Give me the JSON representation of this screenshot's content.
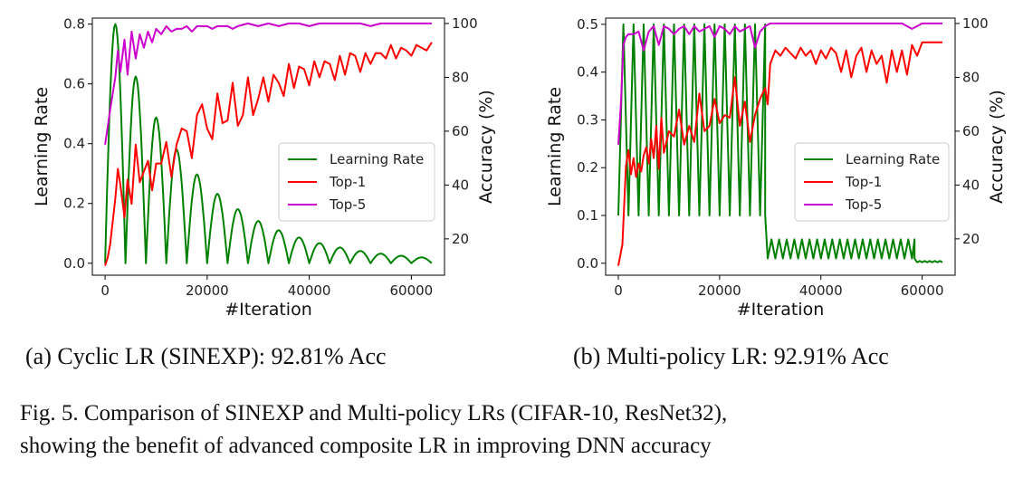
{
  "chart_data": [
    {
      "type": "line",
      "id": "a",
      "xlabel": "#Iteration",
      "ylabel": "Learning Rate",
      "y2label": "Accuracy (%)",
      "xlim": [
        -2500,
        66500
      ],
      "ylim": [
        -0.04,
        0.82
      ],
      "y2lim": [
        6.5,
        102
      ],
      "xticks": [
        0,
        20000,
        40000,
        60000
      ],
      "yticks": [
        0.0,
        0.2,
        0.4,
        0.6,
        0.8
      ],
      "yticklabels": [
        "0.0",
        "0.2",
        "0.4",
        "0.6",
        "0.8"
      ],
      "y2ticks": [
        20,
        40,
        60,
        80,
        100
      ],
      "legend": {
        "position": "center-right",
        "entries": [
          "Learning Rate",
          "Top-1",
          "Top-5"
        ]
      },
      "colors": {
        "Learning Rate": "#008000",
        "Top-1": "#ff0000",
        "Top-5": "#cc00cc"
      },
      "series": [
        {
          "name": "Learning Rate",
          "axis": "left",
          "kind": "sinexp",
          "period": 4000,
          "peak0": 0.8,
          "decay": 0.94,
          "x_end": 64000
        },
        {
          "name": "Top-1",
          "axis": "right",
          "x": [
            0,
            500,
            1000,
            2000,
            2500,
            3000,
            3800,
            4400,
            5200,
            6000,
            6800,
            7600,
            8400,
            9200,
            10000,
            11000,
            12000,
            13000,
            14000,
            15000,
            16000,
            17000,
            18000,
            19000,
            20000,
            21000,
            22000,
            23000,
            24000,
            25000,
            26000,
            27000,
            28000,
            29000,
            30000,
            31000,
            32000,
            33000,
            34000,
            35000,
            36000,
            37000,
            38000,
            39000,
            40000,
            41000,
            42000,
            43000,
            44000,
            45000,
            46000,
            47000,
            48000,
            49000,
            50000,
            51000,
            52000,
            53000,
            54000,
            55000,
            56000,
            57000,
            58000,
            59000,
            60000,
            61000,
            62000,
            63000,
            64000
          ],
          "values": [
            10,
            13,
            18,
            35,
            46,
            40,
            28,
            42,
            33,
            55,
            41,
            45,
            49,
            38,
            48,
            48,
            56,
            43,
            55,
            61,
            60,
            50,
            66,
            70,
            61,
            57,
            74,
            63,
            64,
            78,
            62,
            66,
            80,
            66,
            72,
            80,
            71,
            81,
            78,
            73,
            85,
            76,
            84,
            83,
            77,
            86,
            80,
            86,
            85,
            79,
            88,
            81,
            89,
            88,
            82,
            89,
            85,
            89,
            89,
            87,
            92,
            87,
            91,
            90,
            88,
            92,
            91,
            90,
            93
          ]
        },
        {
          "name": "Top-5",
          "axis": "right",
          "x": [
            0,
            1000,
            2000,
            2500,
            3000,
            3800,
            4400,
            5200,
            6000,
            6800,
            7600,
            8400,
            9200,
            10000,
            11000,
            12000,
            13000,
            14000,
            15000,
            16000,
            17000,
            18000,
            19000,
            20000,
            21000,
            22000,
            23000,
            24000,
            25000,
            26000,
            28000,
            30000,
            32000,
            34000,
            36000,
            38000,
            40000,
            42000,
            44000,
            46000,
            48000,
            50000,
            52000,
            54000,
            56000,
            58000,
            60000,
            62000,
            64000
          ],
          "values": [
            55,
            68,
            80,
            90,
            82,
            94,
            81,
            97,
            87,
            96,
            91,
            97,
            93,
            98,
            96,
            99,
            97,
            98,
            98,
            99,
            97,
            99,
            99,
            99,
            98,
            99,
            99,
            99,
            98,
            99,
            100,
            99,
            100,
            99,
            100,
            100,
            99,
            100,
            100,
            100,
            100,
            100,
            99,
            100,
            100,
            100,
            100,
            100,
            100
          ]
        }
      ]
    },
    {
      "type": "line",
      "id": "b",
      "xlabel": "#Iteration",
      "ylabel": "Learning Rate",
      "y2label": "Accuracy (%)",
      "xlim": [
        -2500,
        66500
      ],
      "ylim": [
        -0.025,
        0.513
      ],
      "y2lim": [
        6.5,
        102
      ],
      "xticks": [
        0,
        20000,
        40000,
        60000
      ],
      "yticks": [
        0.0,
        0.1,
        0.2,
        0.3,
        0.4,
        0.5
      ],
      "yticklabels": [
        "0.0",
        "0.1",
        "0.2",
        "0.3",
        "0.4",
        "0.5"
      ],
      "y2ticks": [
        20,
        40,
        60,
        80,
        100
      ],
      "legend": {
        "position": "center-right",
        "entries": [
          "Learning Rate",
          "Top-1",
          "Top-5"
        ]
      },
      "colors": {
        "Learning Rate": "#008000",
        "Top-1": "#ff0000",
        "Top-5": "#cc00cc"
      },
      "series": [
        {
          "name": "Learning Rate",
          "axis": "left",
          "kind": "triangular",
          "phase1": {
            "x_start": 0,
            "x_end": 29000,
            "period": 2000,
            "low": 0.1,
            "high": 0.5
          },
          "phase2": {
            "x_start": 29500,
            "x_end": 58500,
            "period": 1500,
            "low": 0.01,
            "high": 0.05
          },
          "phase3": {
            "x_start": 59000,
            "x_end": 64000,
            "period": 1000,
            "low": 0.002,
            "high": 0.005
          }
        },
        {
          "name": "Top-1",
          "axis": "right",
          "x": [
            0,
            800,
            1500,
            2000,
            2500,
            3000,
            3500,
            4000,
            4500,
            5000,
            5500,
            6000,
            6500,
            7000,
            7500,
            8000,
            8500,
            9000,
            10000,
            11000,
            12000,
            13000,
            14000,
            15000,
            16000,
            17000,
            18000,
            19000,
            20000,
            21000,
            22000,
            23000,
            24000,
            25000,
            26000,
            27000,
            28000,
            29000,
            29500,
            30000,
            31000,
            32000,
            33000,
            34000,
            35000,
            36000,
            37000,
            38000,
            39000,
            40000,
            41000,
            42000,
            43000,
            44000,
            45000,
            46000,
            47000,
            48000,
            49000,
            50000,
            51000,
            52000,
            53000,
            54000,
            55000,
            56000,
            57000,
            58000,
            59000,
            60000,
            61000,
            62000,
            63000,
            64000
          ],
          "values": [
            10,
            18,
            47,
            53,
            44,
            50,
            43,
            48,
            45,
            51,
            54,
            48,
            57,
            50,
            62,
            46,
            65,
            52,
            60,
            58,
            68,
            55,
            62,
            56,
            74,
            60,
            62,
            72,
            63,
            66,
            65,
            80,
            62,
            71,
            56,
            66,
            72,
            76,
            70,
            85,
            90,
            88,
            91,
            89,
            87,
            91,
            88,
            90,
            85,
            90,
            87,
            91,
            89,
            82,
            90,
            80,
            88,
            91,
            82,
            90,
            85,
            88,
            78,
            90,
            82,
            90,
            81,
            92,
            88,
            93,
            93,
            93,
            93,
            93
          ]
        },
        {
          "name": "Top-5",
          "axis": "right",
          "x": [
            0,
            500,
            1000,
            1500,
            2000,
            3000,
            4000,
            5000,
            6000,
            7000,
            8000,
            9000,
            10000,
            11000,
            12000,
            13000,
            14000,
            15000,
            16000,
            17000,
            18000,
            19000,
            20000,
            21000,
            22000,
            23000,
            24000,
            25000,
            26000,
            27000,
            28000,
            29000,
            30000,
            32000,
            34000,
            36000,
            38000,
            40000,
            42000,
            44000,
            46000,
            48000,
            50000,
            52000,
            54000,
            56000,
            58000,
            60000,
            62000,
            64000
          ],
          "values": [
            55,
            70,
            92,
            95,
            96,
            96,
            97,
            90,
            97,
            99,
            92,
            99,
            98,
            96,
            98,
            99,
            96,
            99,
            97,
            98,
            99,
            95,
            99,
            98,
            96,
            99,
            97,
            98,
            99,
            91,
            97,
            99,
            100,
            100,
            100,
            100,
            100,
            100,
            100,
            100,
            100,
            100,
            100,
            100,
            100,
            100,
            98,
            100,
            100,
            100
          ]
        }
      ]
    }
  ],
  "captions": {
    "sub_a": "(a) Cyclic LR (SINEXP): 92.81% Acc",
    "sub_b": "(b) Multi-policy LR: 92.91% Acc",
    "fig_line1": "Fig. 5.  Comparison of SINEXP and Multi-policy LRs (CIFAR-10, ResNet32),",
    "fig_line2": "showing the benefit of advanced composite LR in improving DNN accuracy"
  }
}
